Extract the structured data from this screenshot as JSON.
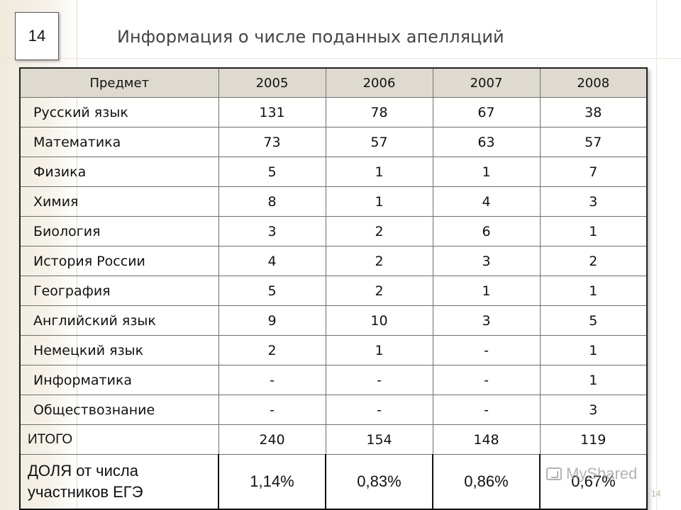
{
  "slide": {
    "number_box": "14",
    "page_number": "14"
  },
  "title": "Информация о числе поданных апелляций",
  "table": {
    "headers": [
      "Предмет",
      "2005",
      "2006",
      "2007",
      "2008"
    ],
    "rows": [
      [
        "Русский язык",
        "131",
        "78",
        "67",
        "38"
      ],
      [
        "Математика",
        "73",
        "57",
        "63",
        "57"
      ],
      [
        "Физика",
        "5",
        "1",
        "1",
        "7"
      ],
      [
        "Химия",
        "8",
        "1",
        "4",
        "3"
      ],
      [
        "Биология",
        "3",
        "2",
        "6",
        "1"
      ],
      [
        "История России",
        "4",
        "2",
        "3",
        "2"
      ],
      [
        "География",
        "5",
        "2",
        "1",
        "1"
      ],
      [
        "Английский язык",
        "9",
        "10",
        "3",
        "5"
      ],
      [
        "Немецкий язык",
        "2",
        "1",
        "-",
        "1"
      ],
      [
        "Информатика",
        "-",
        "-",
        "-",
        "1"
      ],
      [
        "Обществознание",
        "-",
        "-",
        "-",
        "3"
      ]
    ],
    "total": [
      "ИТОГО",
      "240",
      "154",
      "148",
      "119"
    ],
    "share": {
      "label_line1": "ДОЛЯ от числа",
      "label_line2": "участников ЕГЭ",
      "values": [
        "1,14%",
        "0,83%",
        "0,86%",
        "0,67%"
      ]
    }
  },
  "watermark": {
    "text": "MyShared",
    "icon": "presentation-icon"
  }
}
